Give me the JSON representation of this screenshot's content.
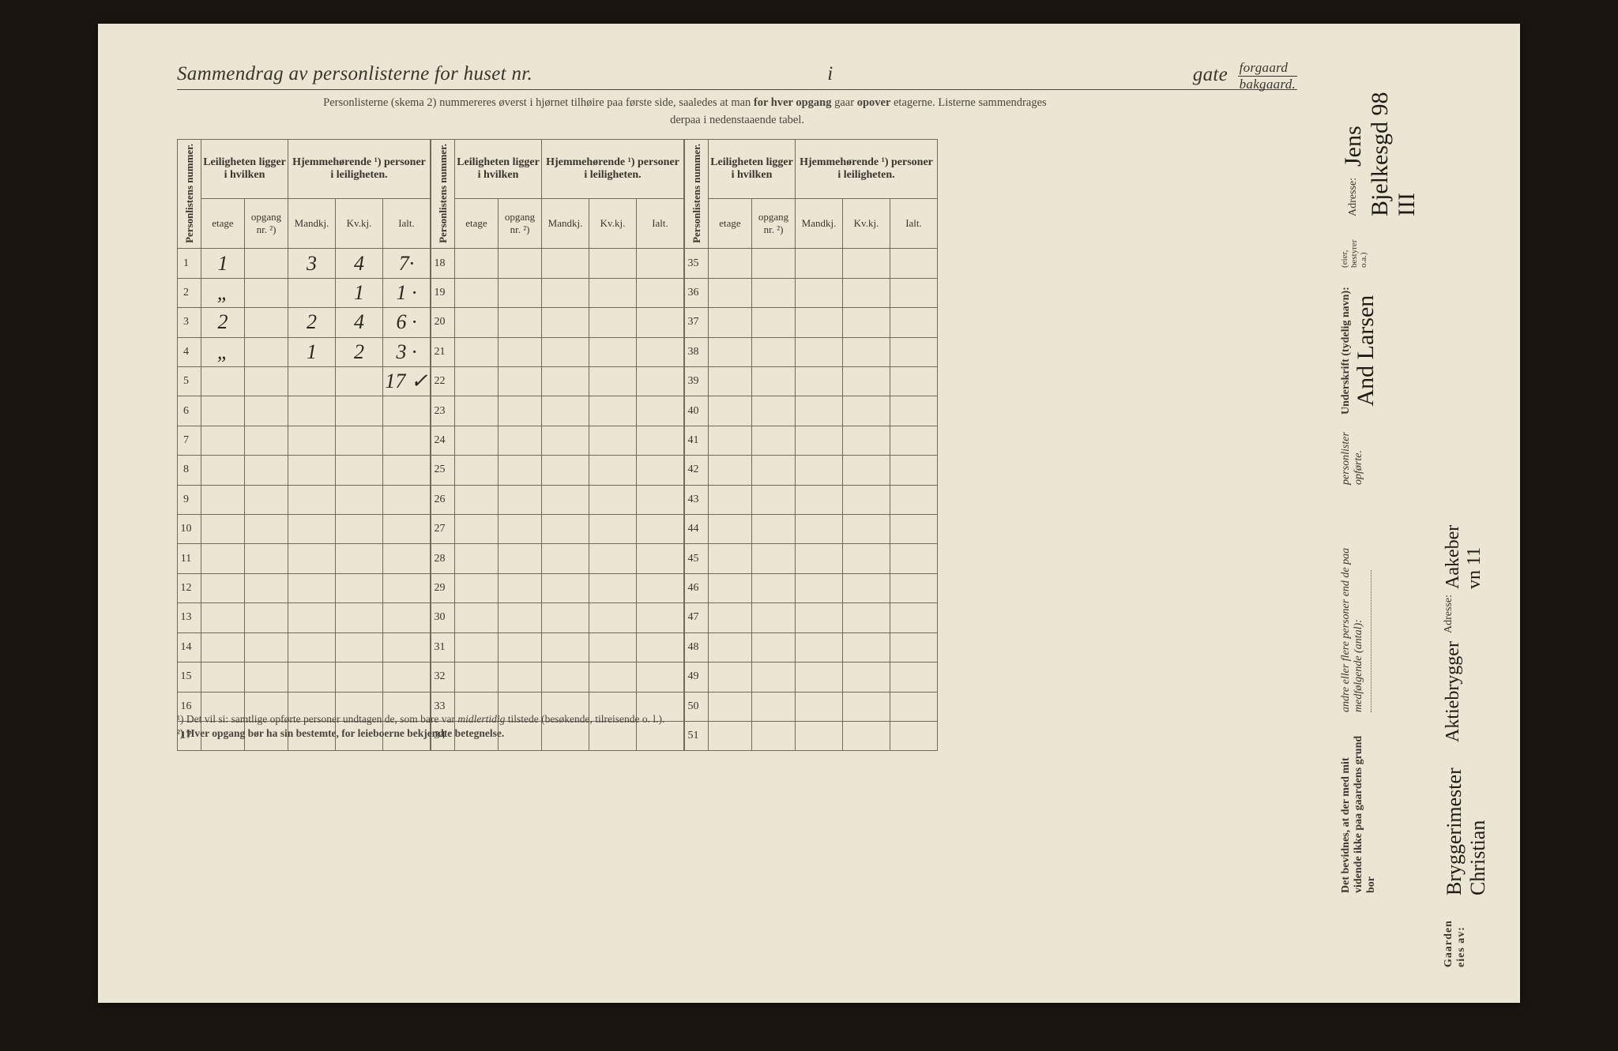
{
  "header": {
    "title_prefix": "Sammendrag av personlisterne for huset nr.",
    "title_i": "i",
    "gate": "gate",
    "forgaard": "forgaard",
    "bakgaard": "bakgaard.",
    "subtext1": "Personlisterne (skema 2) nummereres øverst i hjørnet tilhøire paa første side, saaledes at man",
    "subtext1_bold1": "for hver opgang",
    "subtext1_mid": "gaar",
    "subtext1_bold2": "opover",
    "subtext1_end": "etagerne.   Listerne sammendrages",
    "subtext2": "derpaa i nedenstaaende tabel."
  },
  "table_headers": {
    "personlistens": "Personlistens nummer.",
    "leiligheten": "Leiligheten ligger i hvilken",
    "hjemme": "Hjemmehørende ¹) personer i leiligheten.",
    "etage": "etage",
    "opgang": "opgang nr. ²)",
    "mandkj": "Mandkj.",
    "kvkj": "Kv.kj.",
    "ialt": "Ialt."
  },
  "rows": [
    {
      "n": "1",
      "etage": "1",
      "op": "",
      "m": "3",
      "k": "4",
      "i": "7·"
    },
    {
      "n": "2",
      "etage": "„",
      "op": "",
      "m": "",
      "k": "1",
      "i": "1 ·"
    },
    {
      "n": "3",
      "etage": "2",
      "op": "",
      "m": "2",
      "k": "4",
      "i": "6 ·"
    },
    {
      "n": "4",
      "etage": "„",
      "op": "",
      "m": "1",
      "k": "2",
      "i": "3 ·"
    },
    {
      "n": "5",
      "etage": "",
      "op": "",
      "m": "",
      "k": "",
      "i": "17 ✓"
    },
    {
      "n": "6"
    },
    {
      "n": "7"
    },
    {
      "n": "8"
    },
    {
      "n": "9"
    },
    {
      "n": "10"
    },
    {
      "n": "11"
    },
    {
      "n": "12"
    },
    {
      "n": "13"
    },
    {
      "n": "14"
    },
    {
      "n": "15"
    },
    {
      "n": "16"
    },
    {
      "n": "17"
    }
  ],
  "rows2": [
    {
      "n": "18"
    },
    {
      "n": "19"
    },
    {
      "n": "20"
    },
    {
      "n": "21"
    },
    {
      "n": "22"
    },
    {
      "n": "23"
    },
    {
      "n": "24"
    },
    {
      "n": "25"
    },
    {
      "n": "26"
    },
    {
      "n": "27"
    },
    {
      "n": "28"
    },
    {
      "n": "29"
    },
    {
      "n": "30"
    },
    {
      "n": "31"
    },
    {
      "n": "32"
    },
    {
      "n": "33"
    },
    {
      "n": "34"
    }
  ],
  "rows3": [
    {
      "n": "35"
    },
    {
      "n": "36"
    },
    {
      "n": "37"
    },
    {
      "n": "38"
    },
    {
      "n": "39"
    },
    {
      "n": "40"
    },
    {
      "n": "41"
    },
    {
      "n": "42"
    },
    {
      "n": "43"
    },
    {
      "n": "44"
    },
    {
      "n": "45"
    },
    {
      "n": "46"
    },
    {
      "n": "47"
    },
    {
      "n": "48"
    },
    {
      "n": "49"
    },
    {
      "n": "50"
    },
    {
      "n": "51"
    }
  ],
  "footnotes": {
    "f1": "¹) Det vil si: samtlige opførte personer undtagen de, som bare var",
    "f1_it": "midlertidig",
    "f1_end": "tilstede (besøkende, tilreisende o. l.).",
    "f2": "²) Hver opgang bør ha sin bestemte, for leieboerne bekjendte betegnelse."
  },
  "right_block": {
    "bevidnes1": "Det bevidnes, at der med mit vidende ikke paa gaardens grund bor",
    "bevidnes2": "andre eller flere personer end de paa medfølgende (antal):",
    "bevidnes3": "personlister opførte.",
    "underskrift_lbl": "Underskrift (tydelig navn):",
    "signature": "And Larsen",
    "bestyrer": "(eier, bestyrer o.a.)",
    "adresse_lbl": "Adresse:",
    "adresse_val": "Jens Bjelkesgd 98 III"
  },
  "owner_block": {
    "gaarden_lbl": "Gaarden eies av:",
    "owner_line1": "Bryggerimester Christian",
    "owner_line2": "Aktiebrygger",
    "adresse_lbl": "Adresse:",
    "adresse_val": "Aakeber vn 11"
  },
  "style": {
    "page_bg": "#ebe5d4",
    "border_color": "#706a59",
    "text_color": "#3a352c",
    "hand_color": "#2a261e"
  }
}
